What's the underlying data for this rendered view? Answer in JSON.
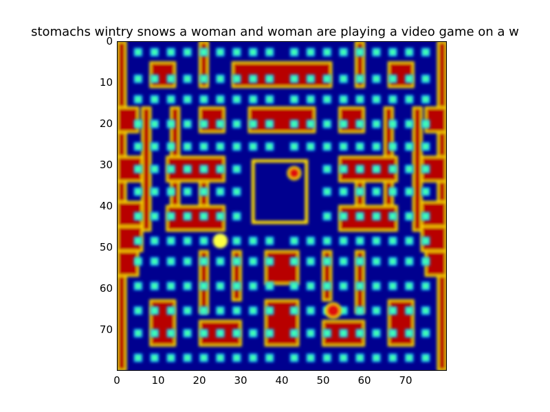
{
  "title": "stomachs wintry snows    a woman and woman are playing a video game on a w",
  "image": {
    "extent": [
      0,
      80,
      80,
      0
    ],
    "colormap": "jet",
    "colors": {
      "wall": "#b80000",
      "wall_edge": "#ffe000",
      "background": "#00008f",
      "pellet": "#40ffb0",
      "pellet_glow": "#00a0ff",
      "player": "#ffff40",
      "ghost": "#e01010"
    }
  },
  "axes": {
    "x_ticks": [
      "0",
      "10",
      "20",
      "30",
      "40",
      "50",
      "60",
      "70"
    ],
    "y_ticks": [
      "0",
      "10",
      "20",
      "30",
      "40",
      "50",
      "60",
      "70"
    ]
  },
  "game": {
    "player_label": "pac-man",
    "ghost_label": "ghost"
  }
}
